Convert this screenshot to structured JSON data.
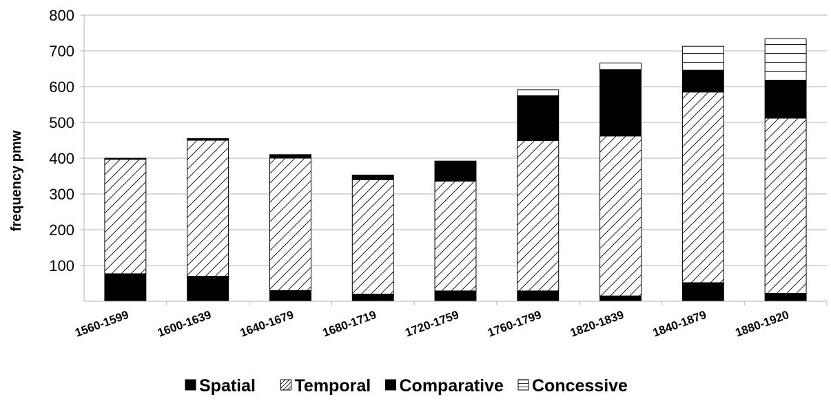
{
  "chart_data": {
    "type": "bar",
    "stacked": true,
    "title": "",
    "xlabel": "",
    "ylabel": "frequency pmw",
    "ylim": [
      0,
      800
    ],
    "yticks": [
      100,
      200,
      300,
      400,
      500,
      600,
      700,
      800
    ],
    "grid": true,
    "legend_position": "bottom",
    "categories": [
      "1560-1599",
      "1600-1639",
      "1640-1679",
      "1680-1719",
      "1720-1759",
      "1760-1799",
      "1820-1839",
      "1840-1879",
      "1880-1920"
    ],
    "series": [
      {
        "name": "Spatial",
        "pattern": "solid",
        "color": "#000000",
        "values": [
          77,
          70,
          30,
          20,
          29,
          29,
          15,
          52,
          22
        ]
      },
      {
        "name": "Temporal",
        "pattern": "diagonal-hatch",
        "color": "#000000",
        "values": [
          320,
          380,
          370,
          320,
          307,
          420,
          447,
          533,
          490
        ]
      },
      {
        "name": "Comparative",
        "pattern": "solid",
        "color": "#000000",
        "values": [
          3,
          5,
          10,
          13,
          56,
          126,
          186,
          61,
          105
        ]
      },
      {
        "name": "Concessive",
        "pattern": "horizontal-lines",
        "color": "#000000",
        "values": [
          0,
          0,
          0,
          0,
          0,
          16,
          18,
          67,
          117
        ]
      }
    ]
  }
}
